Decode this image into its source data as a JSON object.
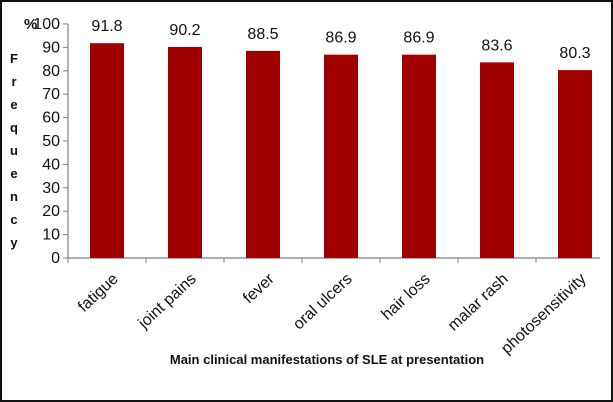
{
  "chart_data": {
    "type": "bar",
    "categories": [
      "fatigue",
      "joint pains",
      "fever",
      "oral ulcers",
      "hair loss",
      "malar rash",
      "photosensitivity"
    ],
    "values": [
      91.8,
      90.2,
      88.5,
      86.9,
      86.9,
      83.6,
      80.3
    ],
    "value_labels": [
      "91.8",
      "90.2",
      "88.5",
      "86.9",
      "86.9",
      "83.6",
      "80.3"
    ],
    "y_ticks": [
      0,
      10,
      20,
      30,
      40,
      50,
      60,
      70,
      80,
      90,
      100
    ],
    "xlabel": "Main clinical manifestations of SLE at presentation",
    "ylabel": "Frequency",
    "y_unit": "%",
    "ylim": [
      0,
      100
    ],
    "grid": false,
    "legend": "none",
    "colors": {
      "bar": "#a10000",
      "axis": "#7f7f7f",
      "text": "#111111",
      "frame": "#111111"
    }
  }
}
